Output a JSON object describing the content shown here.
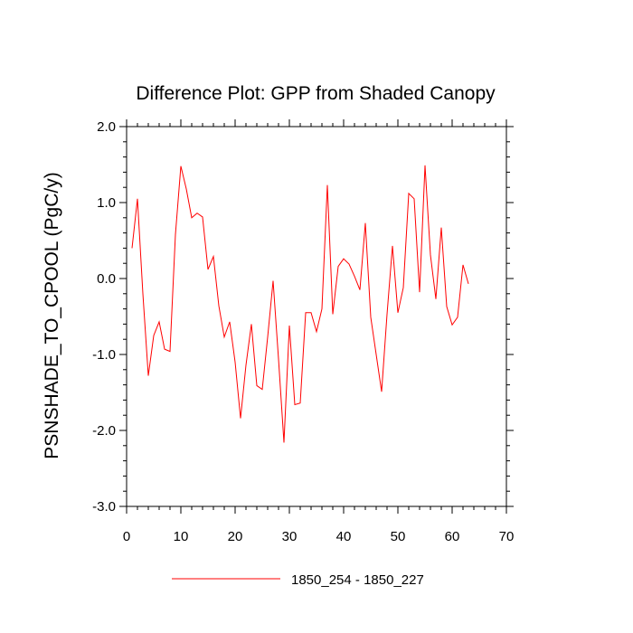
{
  "chart_data": {
    "type": "line",
    "title": "Difference Plot: GPP from Shaded Canopy",
    "xlabel": "",
    "ylabel": "PSNSHADE_TO_CPOOL  (PgC/y)",
    "xlim": [
      0,
      70
    ],
    "ylim": [
      -3.0,
      2.0
    ],
    "xticks": [
      0,
      10,
      20,
      30,
      40,
      50,
      60,
      70
    ],
    "xtick_labels": [
      "0",
      "10",
      "20",
      "30",
      "40",
      "50",
      "60",
      "70"
    ],
    "yticks": [
      -3.0,
      -2.0,
      -1.0,
      0.0,
      1.0,
      2.0
    ],
    "ytick_labels": [
      "-3.0",
      "-2.0",
      "-1.0",
      "0.0",
      "1.0",
      "2.0"
    ],
    "grid": false,
    "legend_position": "bottom-center",
    "series": [
      {
        "name": "1850_254 - 1850_227",
        "color": "#ff0000",
        "x": [
          1,
          2,
          3,
          4,
          5,
          6,
          7,
          8,
          9,
          10,
          11,
          12,
          13,
          14,
          15,
          16,
          17,
          18,
          19,
          20,
          21,
          22,
          23,
          24,
          25,
          26,
          27,
          28,
          29,
          30,
          31,
          32,
          33,
          34,
          35,
          36,
          37,
          38,
          39,
          40,
          41,
          42,
          43,
          44,
          45,
          46,
          47,
          48,
          49,
          50,
          51,
          52,
          53,
          54,
          55,
          56,
          57,
          58,
          59,
          60,
          61,
          62,
          63
        ],
        "values": [
          0.4,
          1.05,
          -0.2,
          -1.28,
          -0.75,
          -0.57,
          -0.93,
          -0.96,
          0.58,
          1.48,
          1.18,
          0.8,
          0.86,
          0.81,
          0.12,
          0.29,
          -0.36,
          -0.77,
          -0.57,
          -1.1,
          -1.84,
          -1.14,
          -0.6,
          -1.41,
          -1.46,
          -0.77,
          -0.03,
          -1.06,
          -2.16,
          -0.62,
          -1.66,
          -1.64,
          -0.45,
          -0.45,
          -0.7,
          -0.4,
          1.23,
          -0.47,
          0.16,
          0.26,
          0.19,
          0.03,
          -0.15,
          0.73,
          -0.51,
          -1.0,
          -1.49,
          -0.47,
          0.43,
          -0.45,
          -0.12,
          1.12,
          1.05,
          -0.18,
          1.49,
          0.31,
          -0.27,
          0.67,
          -0.37,
          -0.61,
          -0.51,
          0.18,
          -0.07
        ]
      }
    ]
  }
}
